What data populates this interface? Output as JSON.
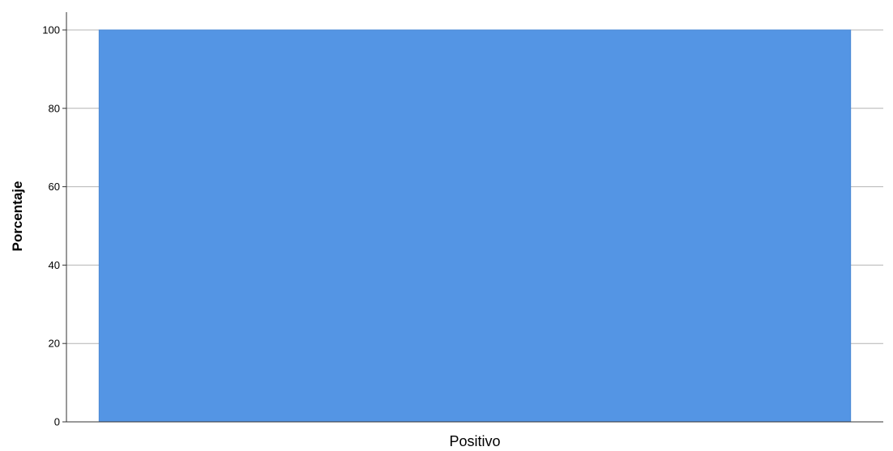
{
  "chart_data": {
    "type": "bar",
    "categories": [
      "Positivo"
    ],
    "values": [
      100
    ],
    "ylabel": "Porcentaje",
    "xlabel": "",
    "ylim": [
      0,
      100
    ],
    "yticks": [
      0,
      20,
      40,
      60,
      80,
      100
    ],
    "grid": true,
    "colors": {
      "bar": "#5495e4",
      "bar_edge": "#4a88d4",
      "grid": "#b4b4b4",
      "axis": "#333333"
    }
  }
}
